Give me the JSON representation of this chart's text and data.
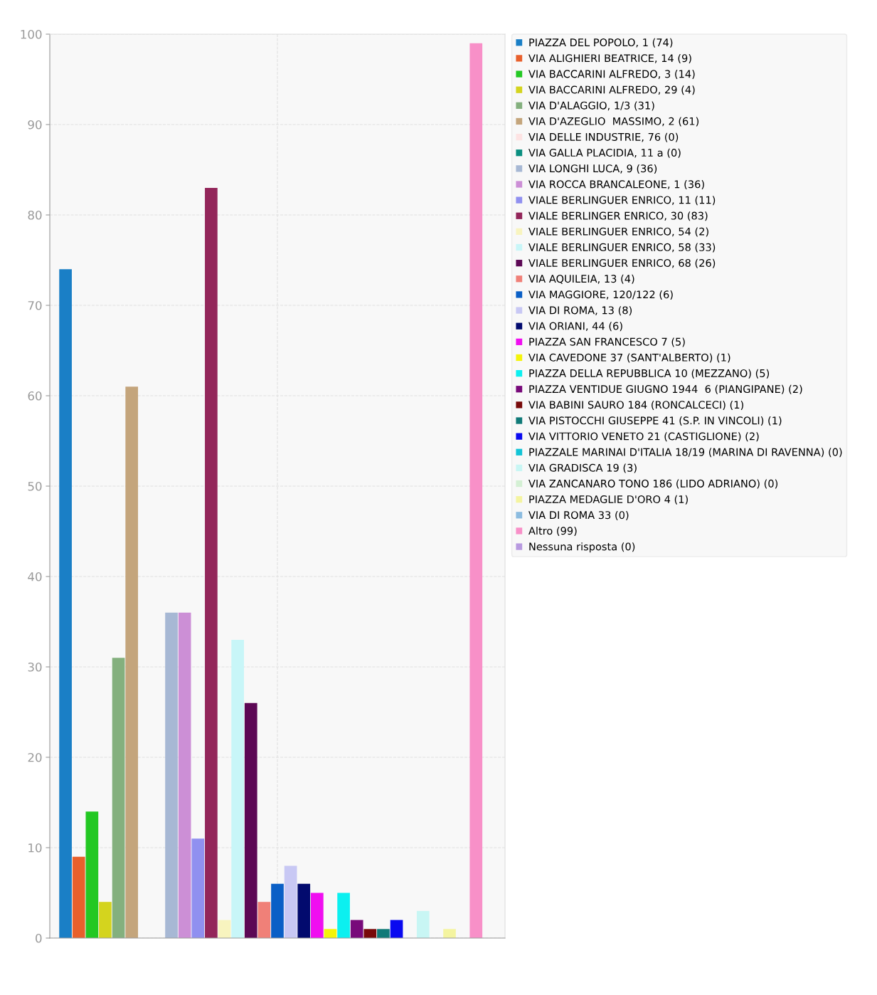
{
  "chart_data": {
    "type": "bar",
    "categories": [
      null
    ],
    "ylim": [
      0,
      100
    ],
    "yticks": [
      0,
      10,
      20,
      30,
      40,
      50,
      60,
      70,
      80,
      90,
      100
    ],
    "grid": true,
    "legend": "right",
    "series": [
      {
        "name": "PIAZZA DEL POPOLO, 1 (74)",
        "color": "#1a7fc6",
        "values": [
          74
        ]
      },
      {
        "name": "VIA ALIGHIERI BEATRICE, 14 (9)",
        "color": "#e8602c",
        "values": [
          9
        ]
      },
      {
        "name": "VIA BACCARINI ALFREDO, 3 (14)",
        "color": "#23c823",
        "values": [
          14
        ]
      },
      {
        "name": "VIA BACCARINI ALFREDO, 29 (4)",
        "color": "#d4d41e",
        "values": [
          4
        ]
      },
      {
        "name": "VIA D'ALAGGIO, 1/3 (31)",
        "color": "#84b07e",
        "values": [
          31
        ]
      },
      {
        "name": "VIA D'AZEGLIO  MASSIMO, 2 (61)",
        "color": "#c4a57c",
        "values": [
          61
        ]
      },
      {
        "name": "VIA DELLE INDUSTRIE, 76 (0)",
        "color": "#fde3e3",
        "values": [
          0
        ]
      },
      {
        "name": "VIA GALLA PLACIDIA, 11 a (0)",
        "color": "#0b8f80",
        "values": [
          0
        ]
      },
      {
        "name": "VIA LONGHI LUCA, 9 (36)",
        "color": "#a7b8d4",
        "values": [
          36
        ]
      },
      {
        "name": "VIA ROCCA BRANCALEONE, 1 (36)",
        "color": "#cc8fd6",
        "values": [
          36
        ]
      },
      {
        "name": "VIALE BERLINGUER ENRICO, 11 (11)",
        "color": "#9090f0",
        "values": [
          11
        ]
      },
      {
        "name": "VIALE BERLINGER ENRICO, 30 (83)",
        "color": "#93265a",
        "values": [
          83
        ]
      },
      {
        "name": "VIALE BERLINGUER ENRICO, 54 (2)",
        "color": "#f8f4bf",
        "values": [
          2
        ]
      },
      {
        "name": "VIALE BERLINGUER ENRICO, 58 (33)",
        "color": "#c8f6f8",
        "values": [
          33
        ]
      },
      {
        "name": "VIALE BERLINGUER ENRICO, 68 (26)",
        "color": "#5c0855",
        "values": [
          26
        ]
      },
      {
        "name": "VIA AQUILEIA, 13 (4)",
        "color": "#f08078",
        "values": [
          4
        ]
      },
      {
        "name": "VIA MAGGIORE, 120/122 (6)",
        "color": "#0a5fc6",
        "values": [
          6
        ]
      },
      {
        "name": "VIA DI ROMA, 13 (8)",
        "color": "#c8c8f4",
        "values": [
          8
        ]
      },
      {
        "name": "VIA ORIANI, 44 (6)",
        "color": "#020a6e",
        "values": [
          6
        ]
      },
      {
        "name": "PIAZZA SAN FRANCESCO 7 (5)",
        "color": "#f00ef0",
        "values": [
          5
        ]
      },
      {
        "name": "VIA CAVEDONE 37 (SANT'ALBERTO) (1)",
        "color": "#f4f40a",
        "values": [
          1
        ]
      },
      {
        "name": "PIAZZA DELLA REPUBBLICA 10 (MEZZANO) (5)",
        "color": "#0cf0f0",
        "values": [
          5
        ]
      },
      {
        "name": "PIAZZA VENTIDUE GIUGNO 1944  6 (PIANGIPANE) (2)",
        "color": "#780a7a",
        "values": [
          2
        ]
      },
      {
        "name": "VIA BABINI SAURO 184 (RONCALCECI) (1)",
        "color": "#780a0a",
        "values": [
          1
        ]
      },
      {
        "name": "VIA PISTOCCHI GIUSEPPE 41 (S.P. IN VINCOLI) (1)",
        "color": "#107a78",
        "values": [
          1
        ]
      },
      {
        "name": "VIA VITTORIO VENETO 21 (CASTIGLIONE) (2)",
        "color": "#0a0af0",
        "values": [
          2
        ]
      },
      {
        "name": "PIAZZALE MARINAI D'ITALIA 18/19 (MARINA DI RAVENNA) (0)",
        "color": "#12c4d6",
        "values": [
          0
        ]
      },
      {
        "name": "VIA GRADISCA 19 (3)",
        "color": "#c8f6f4",
        "values": [
          3
        ]
      },
      {
        "name": "VIA ZANCANARO TONO 186 (LIDO ADRIANO) (0)",
        "color": "#d4f0d4",
        "values": [
          0
        ]
      },
      {
        "name": "PIAZZA MEDAGLIE D'ORO 4 (1)",
        "color": "#f4f4a0",
        "values": [
          1
        ]
      },
      {
        "name": "VIA DI ROMA 33 (0)",
        "color": "#8cbce0",
        "values": [
          0
        ]
      },
      {
        "name": "Altro (99)",
        "color": "#f890c8",
        "values": [
          99
        ]
      },
      {
        "name": "Nessuna risposta (0)",
        "color": "#b89ae0",
        "values": [
          0
        ]
      }
    ]
  }
}
